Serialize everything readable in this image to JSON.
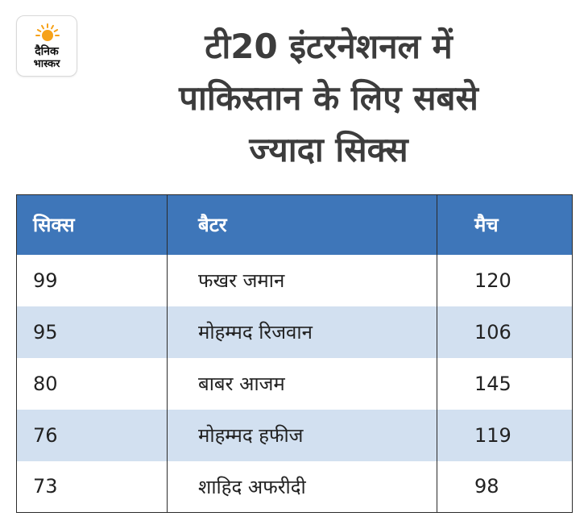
{
  "logo": {
    "line1": "दैनिक",
    "line2": "भास्कर",
    "sun_color": "#f6a21a"
  },
  "title": {
    "line1": "टी20 इंटरनेशनल में",
    "line2": "पाकिस्तान के लिए सबसे",
    "line3": "ज्यादा सिक्स"
  },
  "table": {
    "headers": [
      "सिक्स",
      "बैटर",
      "मैच"
    ],
    "rows": [
      [
        "99",
        "फखर जमान",
        "120"
      ],
      [
        "95",
        "मोहम्मद रिजवान",
        "106"
      ],
      [
        "80",
        "बाबर आजम",
        "145"
      ],
      [
        "76",
        "मोहम्मद हफीज",
        "119"
      ],
      [
        "73",
        "शाहिद अफरीदी",
        "98"
      ]
    ],
    "header_color": "#3e76b9",
    "stripe_color": "#d2e0f0"
  }
}
